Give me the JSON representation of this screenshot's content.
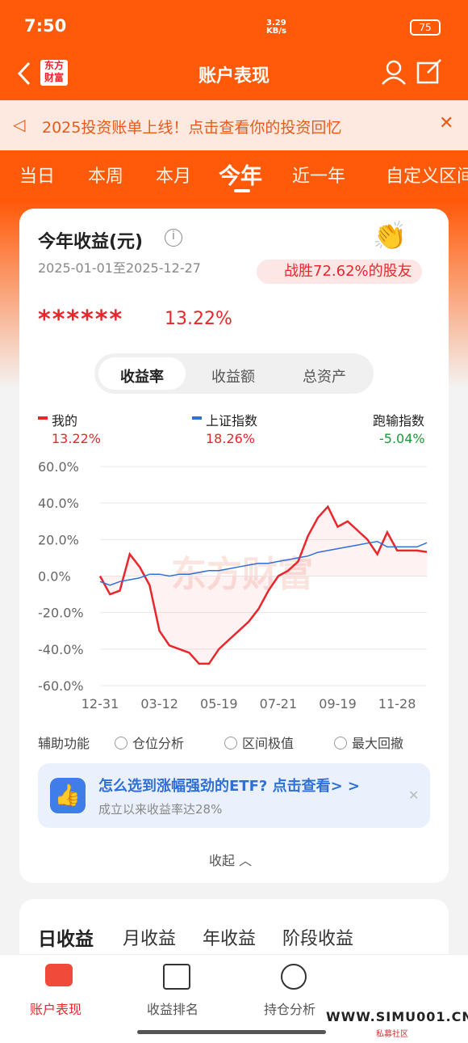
{
  "status_bar": {
    "time": "7:50",
    "speed": "3.29 KB/s",
    "battery": "75"
  },
  "header": {
    "logo": "东方财富",
    "title": "账户表现"
  },
  "banner": {
    "text": "2025投资账单上线！点击查看你的投资回忆"
  },
  "tabs": [
    "当日",
    "本周",
    "本月",
    "今年",
    "近一年",
    "自定义区间"
  ],
  "card": {
    "title": "今年收益(元)",
    "date_range": "2025-01-01至2025-12-27",
    "beat": "战胜72.62%的股友",
    "masked": "******",
    "return": "13.22%",
    "toggle": [
      "收益率",
      "收益额",
      "总资产"
    ],
    "legend_values": [
      "13.22%",
      "18.26%"
    ],
    "compare": {
      "label": "跑输指数",
      "value": "-5.04%"
    }
  },
  "chart_data": {
    "type": "line",
    "watermark": "东方财富",
    "categories": [
      "12-31",
      null,
      null,
      null,
      null,
      null,
      "03-12",
      null,
      null,
      null,
      null,
      null,
      "05-19",
      null,
      null,
      null,
      null,
      null,
      "07-21",
      null,
      null,
      null,
      null,
      null,
      "09-19",
      null,
      null,
      null,
      null,
      null,
      "11-28",
      null,
      null,
      null
    ],
    "series": [
      {
        "name": "我的",
        "color": "#e8262c",
        "values": [
          0,
          -10,
          -8,
          12,
          5,
          -5,
          -30,
          -38,
          -40,
          -42,
          -48,
          -48,
          -40,
          -35,
          -30,
          -25,
          -18,
          -8,
          0,
          3,
          8,
          22,
          32,
          38,
          27,
          30,
          25,
          20,
          12,
          24,
          14,
          14,
          14,
          13.22
        ]
      },
      {
        "name": "上证指数",
        "color": "#2f6fd8",
        "values": [
          -3,
          -5,
          -3,
          -2,
          -1,
          1,
          1,
          0,
          1,
          1,
          2,
          3,
          3,
          4,
          5,
          6,
          7,
          7,
          8,
          9,
          10,
          11,
          13,
          14,
          15,
          16,
          17,
          18,
          19,
          16,
          16,
          16,
          16,
          18.26
        ]
      }
    ],
    "ylim": [
      -60,
      60
    ],
    "yticks": [
      {
        "value": 60,
        "label": "60.0%"
      },
      {
        "value": 40,
        "label": "40.0%"
      },
      {
        "value": 20,
        "label": "20.0%"
      },
      {
        "value": 0,
        "label": "0.0%"
      },
      {
        "value": -20,
        "label": "-20.0%"
      },
      {
        "value": -40,
        "label": "-40.0%"
      },
      {
        "value": -60,
        "label": "-60.0%"
      }
    ],
    "grid": true
  },
  "tools": {
    "label": "辅助功能",
    "options": [
      "仓位分析",
      "区间极值",
      "最大回撤"
    ]
  },
  "promo": {
    "title": "怎么选到涨幅强劲的ETF? 点击查看> >",
    "subtitle": "成立以来收益率达28%"
  },
  "collapse": "收起",
  "earnings_tabs": [
    "日收益",
    "月收益",
    "年收益",
    "阶段收益"
  ],
  "bottom_nav": [
    "账户表现",
    "收益排名",
    "持仓分析"
  ],
  "watermark": {
    "site": "WWW.SIMU001.CN",
    "name": "私募社区"
  }
}
